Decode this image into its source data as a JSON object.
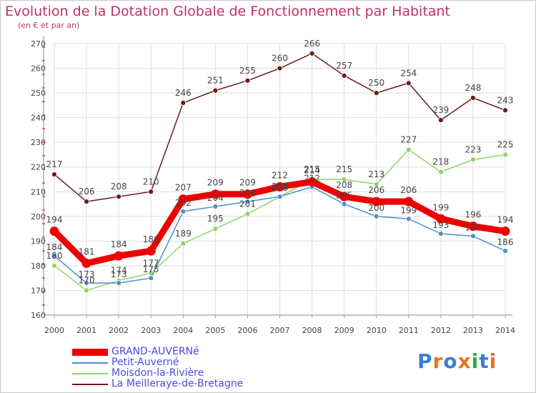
{
  "header": {
    "title": "Evolution de la Dotation Globale de Fonctionnement par Habitant",
    "subtitle": "(en € et par an)"
  },
  "brand": {
    "text": "Proxiti",
    "colors": [
      "#3b7fd4",
      "#e8741c",
      "#3b7fd4",
      "#e8741c",
      "#2aa84a",
      "#3b7fd4",
      "#e8741c"
    ]
  },
  "chart_data": {
    "type": "line",
    "title": "Evolution de la Dotation Globale de Fonctionnement par Habitant",
    "subtitle": "(en € et par an)",
    "x": [
      "2000",
      "2001",
      "2002",
      "2003",
      "2004",
      "2005",
      "2006",
      "2007",
      "2008",
      "2009",
      "2010",
      "2011",
      "2012",
      "2013",
      "2014"
    ],
    "ylim": [
      160,
      270
    ],
    "yticks": [
      160,
      170,
      180,
      190,
      200,
      210,
      220,
      230,
      240,
      250,
      260,
      270
    ],
    "grid": true,
    "legend_position": "bottom-left",
    "series": [
      {
        "name": "La Meilleraye-de-Bretagne",
        "color": "#6b1a1a",
        "values": [
          217,
          206,
          208,
          210,
          246,
          251,
          255,
          260,
          266,
          257,
          250,
          254,
          239,
          248,
          243
        ]
      },
      {
        "name": "Moisdon-la-Rivière",
        "color": "#8fd46a",
        "values": [
          180,
          170,
          174,
          177,
          189,
          195,
          201,
          208,
          215,
          215,
          213,
          227,
          218,
          223,
          225
        ]
      },
      {
        "name": "Petit-Auverné",
        "color": "#4a90d0",
        "values": [
          184,
          173,
          173,
          175,
          202,
          204,
          206,
          208,
          212,
          205,
          200,
          199,
          193,
          192,
          186
        ]
      },
      {
        "name": "GRAND-AUVERNé",
        "color": "#ee0000",
        "values": [
          194,
          181,
          184,
          186,
          207,
          209,
          209,
          212,
          214,
          208,
          206,
          206,
          199,
          196,
          194
        ]
      }
    ],
    "legend_order": [
      "GRAND-AUVERNé",
      "Petit-Auverné",
      "Moisdon-la-Rivière",
      "La Meilleraye-de-Bretagne"
    ]
  }
}
